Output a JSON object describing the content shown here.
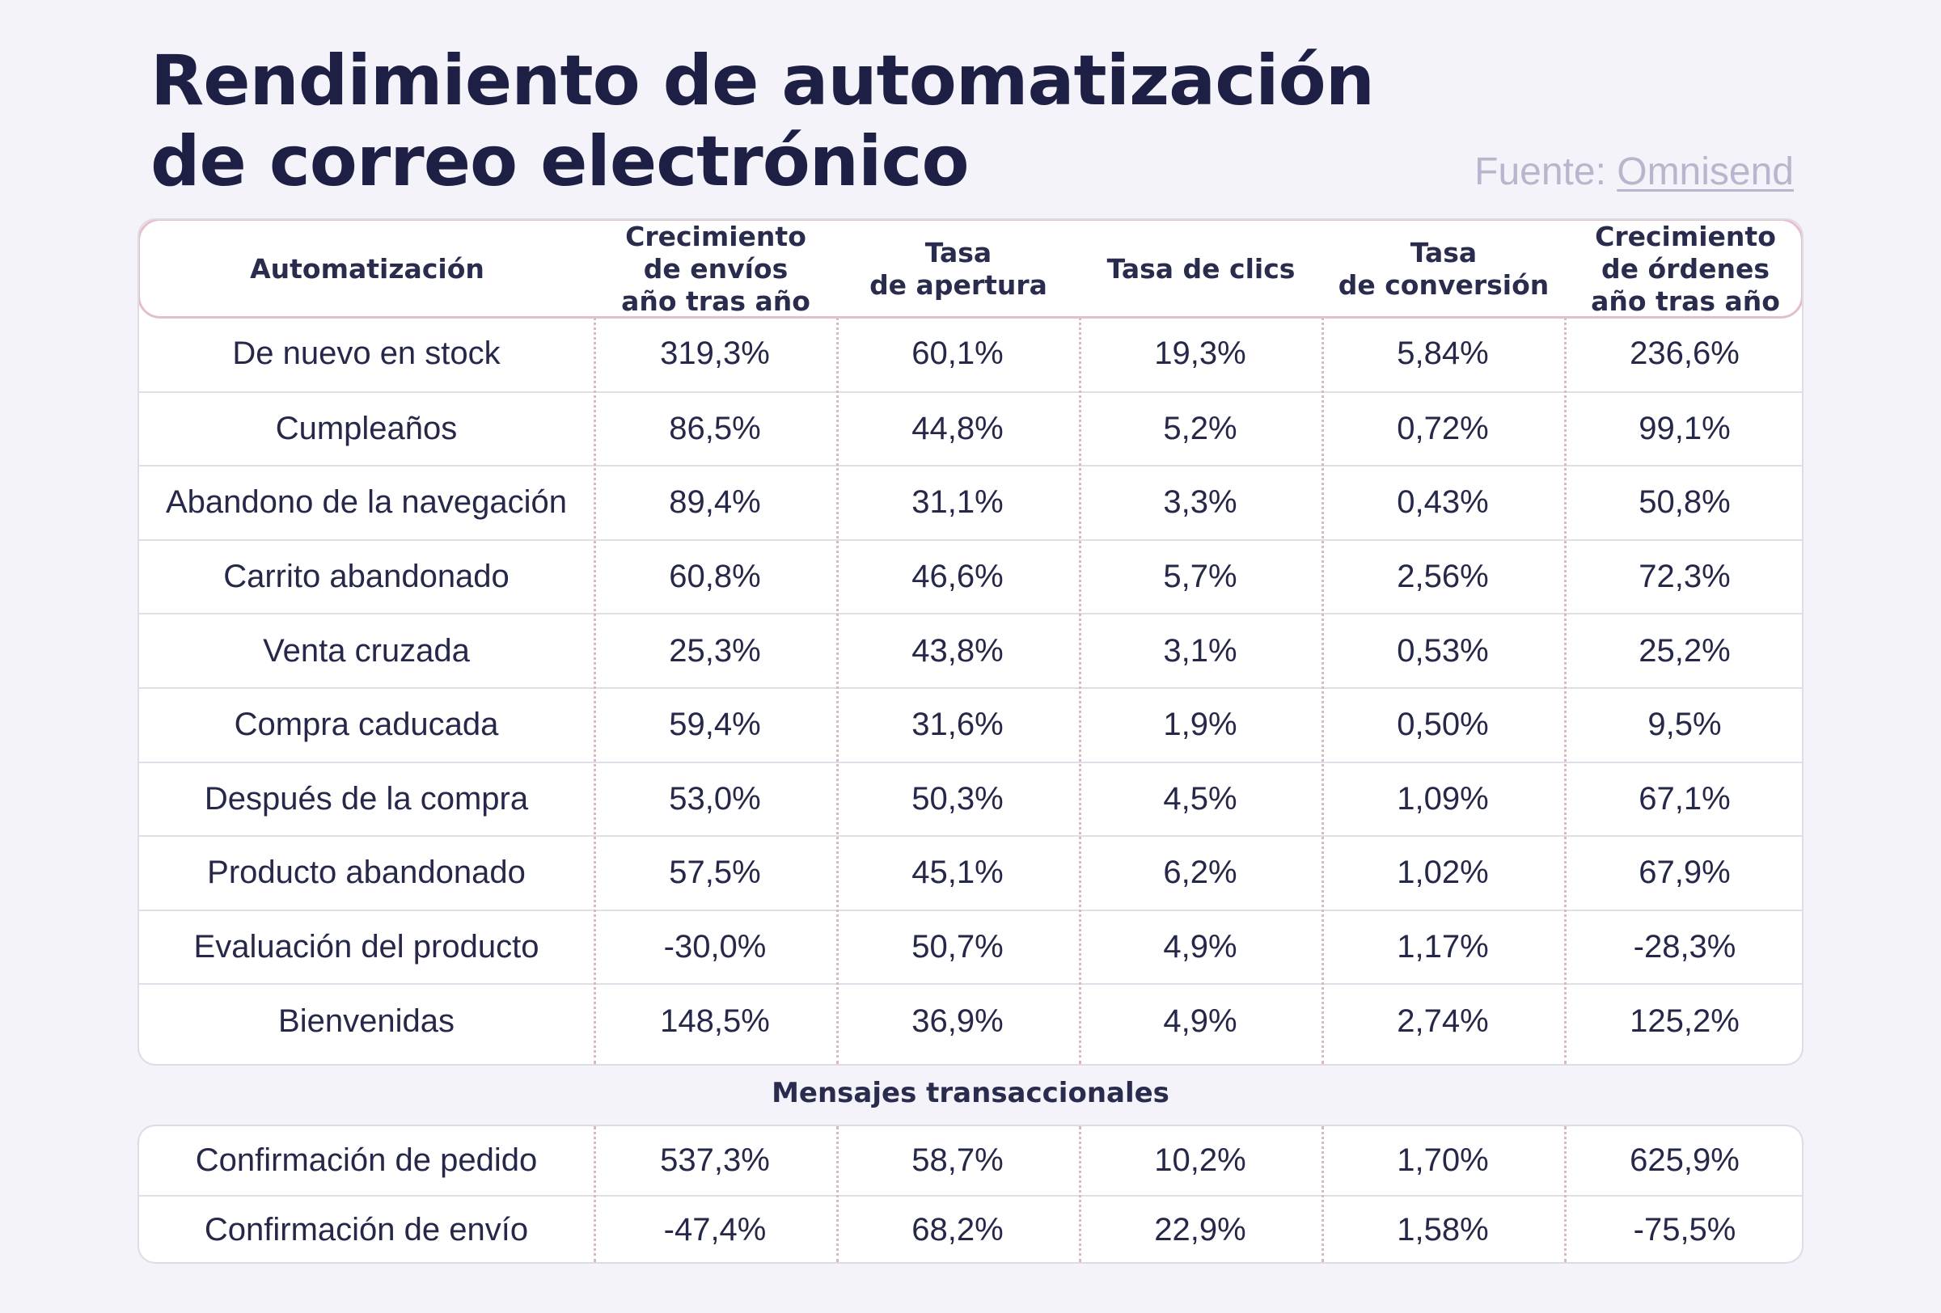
{
  "title": {
    "line1": "Rendimiento de automatización",
    "line2": "de correo electrónico"
  },
  "source": {
    "prefix": "Fuente: ",
    "link": "Omnisend"
  },
  "columns": [
    "Automatización",
    "Crecimiento\nde envíos\naño tras año",
    "Tasa\nde apertura",
    "Tasa de clics",
    "Tasa\nde conversión",
    "Crecimiento\nde órdenes\naño tras año"
  ],
  "rows": [
    [
      "De nuevo en stock",
      "319,3%",
      "60,1%",
      "19,3%",
      "5,84%",
      "236,6%"
    ],
    [
      "Cumpleaños",
      "86,5%",
      "44,8%",
      "5,2%",
      "0,72%",
      "99,1%"
    ],
    [
      "Abandono de la navegación",
      "89,4%",
      "31,1%",
      "3,3%",
      "0,43%",
      "50,8%"
    ],
    [
      "Carrito abandonado",
      "60,8%",
      "46,6%",
      "5,7%",
      "2,56%",
      "72,3%"
    ],
    [
      "Venta cruzada",
      "25,3%",
      "43,8%",
      "3,1%",
      "0,53%",
      "25,2%"
    ],
    [
      "Compra caducada",
      "59,4%",
      "31,6%",
      "1,9%",
      "0,50%",
      "9,5%"
    ],
    [
      "Después de la compra",
      "53,0%",
      "50,3%",
      "4,5%",
      "1,09%",
      "67,1%"
    ],
    [
      "Producto abandonado",
      "57,5%",
      "45,1%",
      "6,2%",
      "1,02%",
      "67,9%"
    ],
    [
      "Evaluación del producto",
      "-30,0%",
      "50,7%",
      "4,9%",
      "1,17%",
      "-28,3%"
    ],
    [
      "Bienvenidas",
      "148,5%",
      "36,9%",
      "4,9%",
      "2,74%",
      "125,2%"
    ]
  ],
  "transactional": {
    "label": "Mensajes transaccionales",
    "rows": [
      [
        "Confirmación de pedido",
        "537,3%",
        "58,7%",
        "10,2%",
        "1,70%",
        "625,9%"
      ],
      [
        "Confirmación de envío",
        "-47,4%",
        "68,2%",
        "22,9%",
        "1,58%",
        "-75,5%"
      ]
    ]
  }
}
